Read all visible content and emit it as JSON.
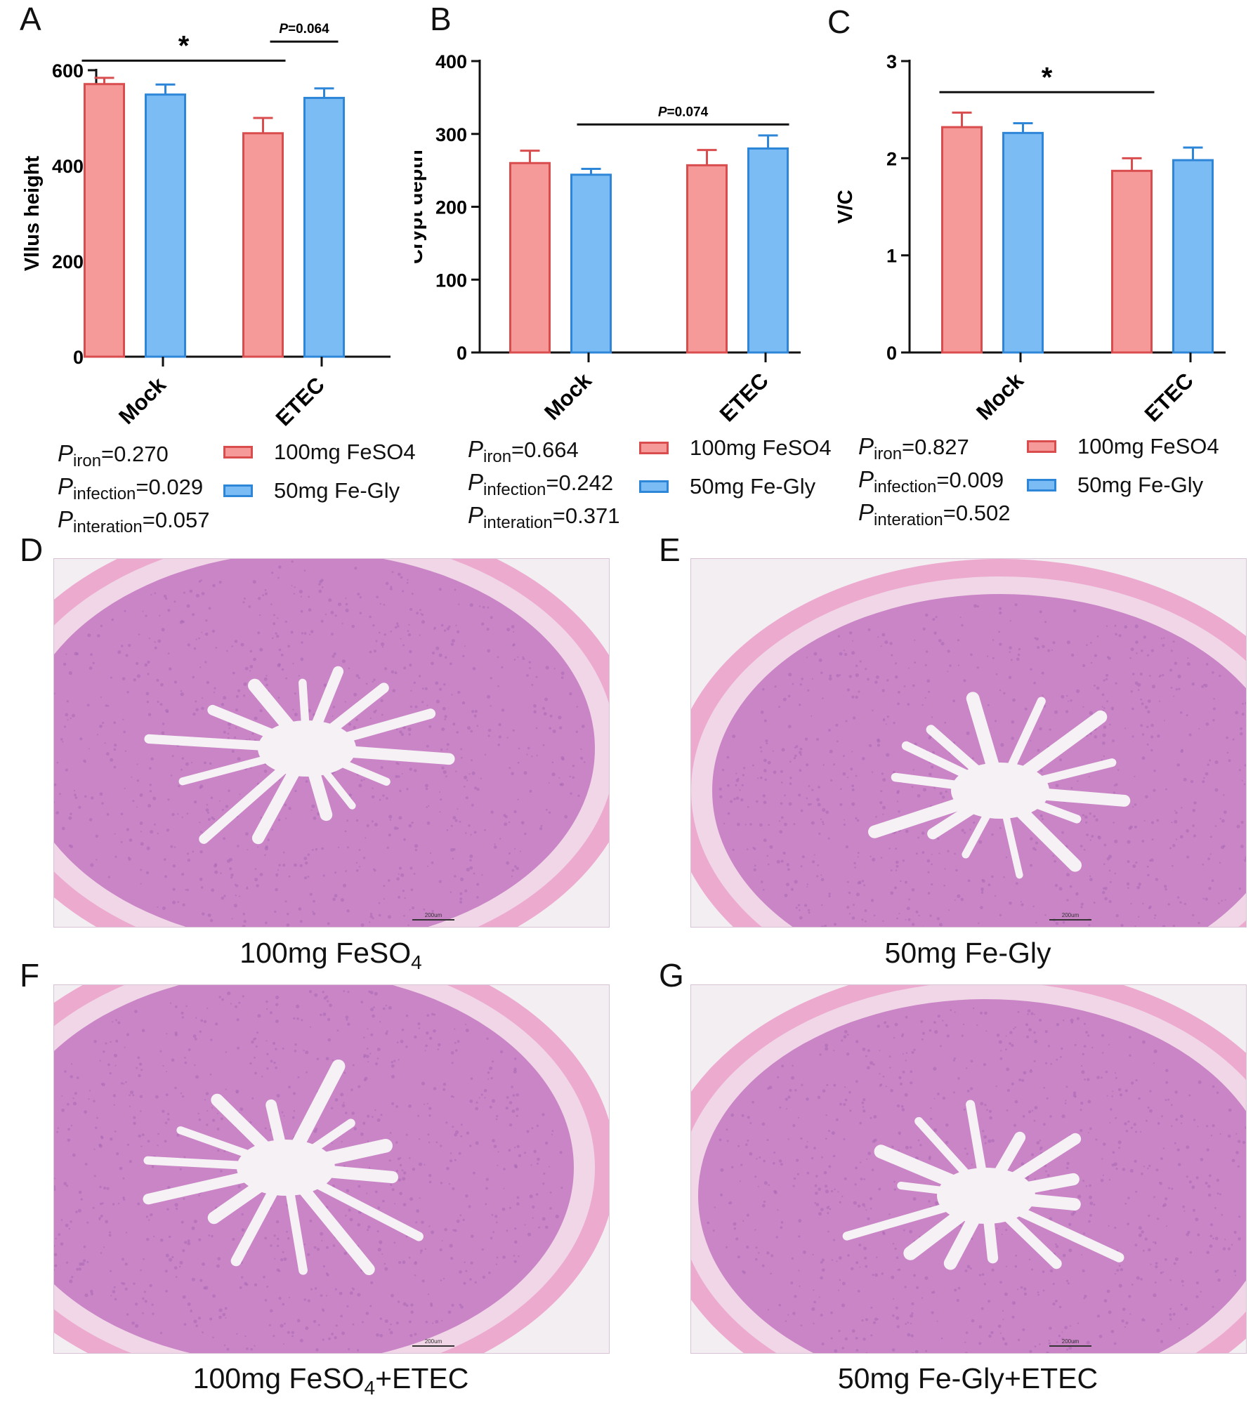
{
  "colors": {
    "red_fill": "#F59A98",
    "red_edge": "#D94D4F",
    "blue_fill": "#7CBCF4",
    "blue_edge": "#2E86D8",
    "tissue": "#C985C6",
    "tissue_dark": "#A968B4",
    "lumen": "#F5F1F4",
    "muscle": "#EDAACF"
  },
  "chart_data": [
    {
      "panel": "A",
      "type": "bar",
      "ylabel": "Vllus height",
      "categories": [
        "Mock",
        "ETEC"
      ],
      "ylim": [
        0,
        600
      ],
      "yticks": [
        0,
        200,
        400,
        600
      ],
      "series": [
        {
          "name": "100mg FeSO4",
          "values": [
            571,
            468
          ],
          "errors": [
            13,
            32
          ]
        },
        {
          "name": "50mg Fe-Gly",
          "values": [
            549,
            542
          ],
          "errors": [
            21,
            20
          ]
        }
      ],
      "annotations": [
        {
          "text": "*",
          "from": [
            0,
            0
          ],
          "to": [
            1,
            0
          ],
          "y": 620
        },
        {
          "text": "P=0.064",
          "from": [
            1,
            0
          ],
          "to": [
            1,
            1
          ],
          "y": 660
        }
      ],
      "stats": [
        {
          "p": "P",
          "sub": "iron",
          "val": "=0.270"
        },
        {
          "p": "P",
          "sub": "infection",
          "val": "=0.029"
        },
        {
          "p": "P",
          "sub": "interation",
          "val": "=0.057"
        }
      ]
    },
    {
      "panel": "B",
      "type": "bar",
      "ylabel": "Crypt depth",
      "categories": [
        "Mock",
        "ETEC"
      ],
      "ylim": [
        0,
        400
      ],
      "yticks": [
        0,
        100,
        200,
        300,
        400
      ],
      "series": [
        {
          "name": "100mg FeSO4",
          "values": [
            260,
            257
          ],
          "errors": [
            17,
            21
          ]
        },
        {
          "name": "50mg Fe-Gly",
          "values": [
            244,
            280
          ],
          "errors": [
            8,
            18
          ]
        }
      ],
      "annotations": [
        {
          "text": "P=0.074",
          "from": [
            0,
            1
          ],
          "to": [
            1,
            1
          ],
          "y": 313
        }
      ],
      "stats": [
        {
          "p": "P",
          "sub": "iron",
          "val": "=0.664"
        },
        {
          "p": "P",
          "sub": "infection",
          "val": "=0.242"
        },
        {
          "p": "P",
          "sub": "interation",
          "val": "=0.371"
        }
      ]
    },
    {
      "panel": "C",
      "type": "bar",
      "ylabel": "V/C",
      "categories": [
        "Mock",
        "ETEC"
      ],
      "ylim": [
        0,
        3
      ],
      "yticks": [
        0,
        1,
        2,
        3
      ],
      "series": [
        {
          "name": "100mg FeSO4",
          "values": [
            2.32,
            1.87
          ],
          "errors": [
            0.15,
            0.13
          ]
        },
        {
          "name": "50mg Fe-Gly",
          "values": [
            2.26,
            1.98
          ],
          "errors": [
            0.1,
            0.13
          ]
        }
      ],
      "annotations": [
        {
          "text": "*",
          "from": [
            0,
            0
          ],
          "to": [
            1,
            0
          ],
          "y": 2.68
        }
      ],
      "stats": [
        {
          "p": "P",
          "sub": "iron",
          "val": "=0.827"
        },
        {
          "p": "P",
          "sub": "infection",
          "val": "=0.009"
        },
        {
          "p": "P",
          "sub": "interation",
          "val": "=0.502"
        }
      ]
    }
  ],
  "legend": [
    "100mg FeSO4",
    "50mg Fe-Gly"
  ],
  "letters": {
    "A": "A",
    "B": "B",
    "C": "C",
    "D": "D",
    "E": "E",
    "F": "F",
    "G": "G"
  },
  "images": [
    {
      "panel": "D",
      "caption_main": "100mg FeSO",
      "caption_sub": "4",
      "caption_tail": "",
      "scale_bar": "200um"
    },
    {
      "panel": "E",
      "caption_main": "50mg Fe-Gly",
      "caption_sub": "",
      "caption_tail": "",
      "scale_bar": "200um"
    },
    {
      "panel": "F",
      "caption_main": "100mg FeSO",
      "caption_sub": "4",
      "caption_tail": "+ETEC",
      "scale_bar": "200um"
    },
    {
      "panel": "G",
      "caption_main": "50mg Fe-Gly+ETEC",
      "caption_sub": "",
      "caption_tail": "",
      "scale_bar": "200um"
    }
  ]
}
